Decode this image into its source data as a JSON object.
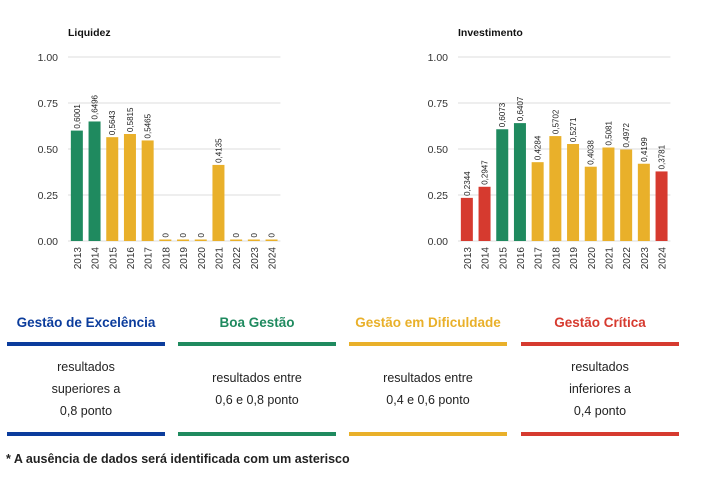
{
  "colors": {
    "excelencia": "#0b3c9c",
    "boa": "#1f8a5f",
    "dificuldade": "#e9b02a",
    "critica": "#d63a2f"
  },
  "chart_data": [
    {
      "type": "bar",
      "title": "Liquidez",
      "ylim": [
        0,
        1
      ],
      "yticks": [
        "0.00",
        "0.25",
        "0.50",
        "0.75",
        "1.00"
      ],
      "categories": [
        "2013",
        "2014",
        "2015",
        "2016",
        "2017",
        "2018",
        "2019",
        "2020",
        "2021",
        "2022",
        "2023",
        "2024"
      ],
      "values": [
        0.6001,
        0.6496,
        0.5643,
        0.5815,
        0.5465,
        0,
        0,
        0,
        0.4135,
        0,
        0,
        0
      ],
      "labels": [
        "0,6001",
        "0,6496",
        "0,5643",
        "0,5815",
        "0,5465",
        "0",
        "0",
        "0",
        "0,4135",
        "0",
        "0",
        "0"
      ],
      "grid": true
    },
    {
      "type": "bar",
      "title": "Investimento",
      "ylim": [
        0,
        1
      ],
      "yticks": [
        "0.00",
        "0.25",
        "0.50",
        "0.75",
        "1.00"
      ],
      "categories": [
        "2013",
        "2014",
        "2015",
        "2016",
        "2017",
        "2018",
        "2019",
        "2020",
        "2021",
        "2022",
        "2023",
        "2024"
      ],
      "values": [
        0.2344,
        0.2947,
        0.6073,
        0.6407,
        0.4284,
        0.5702,
        0.5271,
        0.4038,
        0.5081,
        0.4972,
        0.4199,
        0.3781
      ],
      "labels": [
        "0,2344",
        "0,2947",
        "0,6073",
        "0,6407",
        "0,4284",
        "0,5702",
        "0,5271",
        "0,4038",
        "0,5081",
        "0,4972",
        "0,4199",
        "0,3781"
      ],
      "grid": true
    }
  ],
  "legend": [
    {
      "title": "Gestão de Excelência",
      "color": "#0b3c9c",
      "lines": [
        "resultados",
        "superiores a",
        "0,8 ponto"
      ]
    },
    {
      "title": "Boa Gestão",
      "color": "#1f8a5f",
      "lines": [
        "resultados entre",
        "0,6 e 0,8 ponto"
      ]
    },
    {
      "title": "Gestão em Dificuldade",
      "color": "#e9b02a",
      "lines": [
        "resultados entre",
        "0,4 e 0,6 ponto"
      ]
    },
    {
      "title": "Gestão Crítica",
      "color": "#d63a2f",
      "lines": [
        "resultados",
        "inferiores a",
        "0,4 ponto"
      ]
    }
  ],
  "footnote": "* A ausência de dados será identificada com um asterisco"
}
